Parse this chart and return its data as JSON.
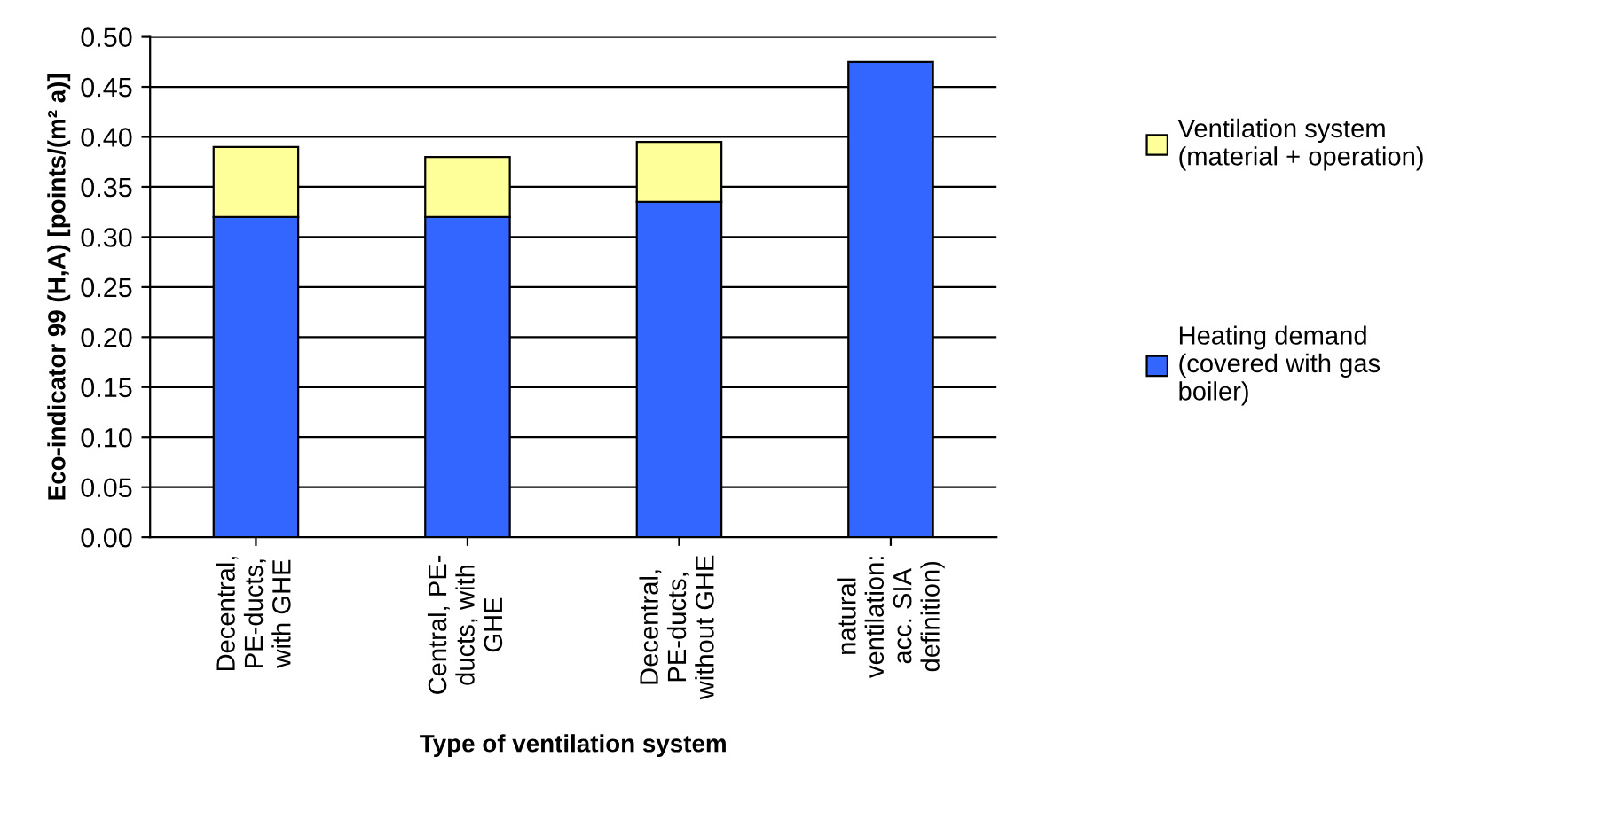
{
  "chart_data": {
    "type": "bar",
    "stacked": true,
    "xlabel": "Type of ventilation system",
    "ylabel": "Eco-indicator 99 (H,A) [points/(m² a)]",
    "categories": [
      "Decentral,\nPE-ducts,\nwith GHE",
      "Central, PE-\nducts, with\nGHE",
      "Decentral,\nPE-ducts,\nwithout GHE",
      "natural\nventilation:\nacc. SIA\ndefinition)"
    ],
    "series": [
      {
        "name": "Heating demand\n(covered with gas\nboiler)",
        "color": "#3366ff",
        "values": [
          0.32,
          0.32,
          0.335,
          0.475
        ]
      },
      {
        "name": "Ventilation system\n(material + operation)",
        "color": "#ffff99",
        "values": [
          0.07,
          0.06,
          0.06,
          null
        ]
      }
    ],
    "ylim": [
      0,
      0.5
    ],
    "yticks": [
      {
        "value": 0,
        "label": "0.00"
      },
      {
        "value": 0.05,
        "label": "0.05"
      },
      {
        "value": 0.1,
        "label": "0.10"
      },
      {
        "value": 0.15,
        "label": "0.15"
      },
      {
        "value": 0.2,
        "label": "0.20"
      },
      {
        "value": 0.25,
        "label": "0.25"
      },
      {
        "value": 0.3,
        "label": "0.30"
      },
      {
        "value": 0.35,
        "label": "0.35"
      },
      {
        "value": 0.4,
        "label": "0.40"
      },
      {
        "value": 0.45,
        "label": "0.45"
      },
      {
        "value": 0.5,
        "label": "0.50"
      }
    ],
    "grid": "y",
    "legend": "right"
  }
}
